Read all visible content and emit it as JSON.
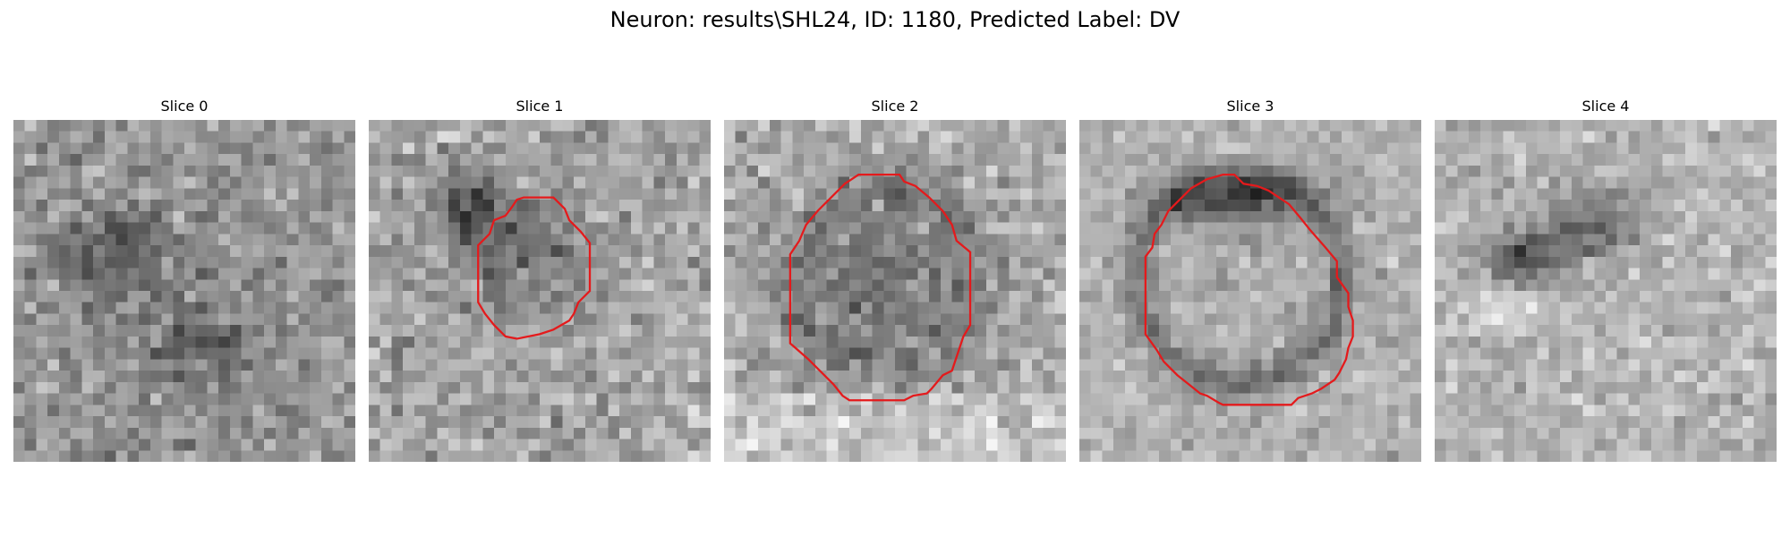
{
  "figure": {
    "title": "Neuron: results\\SHL24, ID: 1180, Predicted Label: DV"
  },
  "panels": [
    {
      "title": "Slice 0",
      "has_contour": false
    },
    {
      "title": "Slice 1",
      "has_contour": true
    },
    {
      "title": "Slice 2",
      "has_contour": true
    },
    {
      "title": "Slice 3",
      "has_contour": true
    },
    {
      "title": "Slice 4",
      "has_contour": false
    }
  ],
  "colors": {
    "contour": "#e41a1c",
    "background": "#ffffff"
  }
}
